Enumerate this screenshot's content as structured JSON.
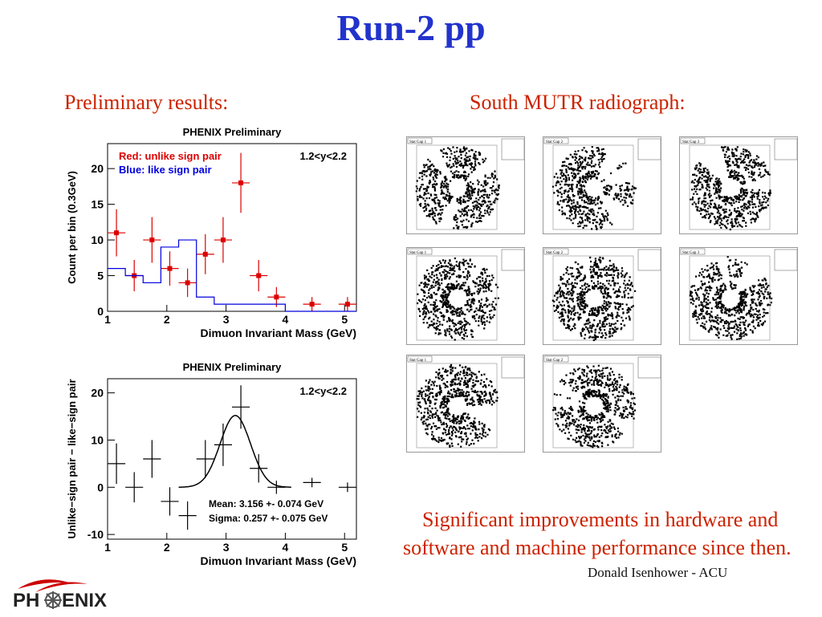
{
  "slide": {
    "title": "Run-2 pp",
    "left_heading": "Preliminary results:",
    "right_heading": "South MUTR radiograph:",
    "summary": "Significant improvements in hardware and software  and machine performance since then.",
    "author": "Donald Isenhower - ACU"
  },
  "logo": {
    "text_left": "PH",
    "text_right": "ENIX",
    "accent": "#cc0000",
    "icon": "phoenix-logo"
  },
  "colors": {
    "title": "#2233cc",
    "heading": "#cc2200",
    "red_series": "#dd0000",
    "blue_series": "#0000dd"
  },
  "chart_data": [
    {
      "type": "line",
      "title": "PHENIX Preliminary",
      "xlabel": "Dimuon Invariant Mass (GeV)",
      "ylabel": "Count per bin (0.3GeV)",
      "xlim": [
        1,
        5.2
      ],
      "ylim": [
        0,
        23.5
      ],
      "xticks": [
        1,
        2,
        3,
        4,
        5
      ],
      "yticks": [
        0,
        5,
        10,
        15,
        20
      ],
      "legend": [
        "Red: unlike sign pair",
        "Blue: like sign pair"
      ],
      "annotation": "1.2<y<2.2",
      "series": [
        {
          "name": "Red: unlike sign pair",
          "style": "points-with-errors",
          "color": "#dd0000",
          "x": [
            1.15,
            1.45,
            1.75,
            2.05,
            2.35,
            2.65,
            2.95,
            3.25,
            3.55,
            3.85,
            4.45,
            5.05
          ],
          "y": [
            11,
            5,
            10,
            6,
            4,
            8,
            10,
            18,
            5,
            2,
            1,
            1
          ],
          "yerr": [
            3.3,
            2.2,
            3.2,
            2.4,
            2.0,
            2.8,
            3.2,
            4.2,
            2.2,
            1.4,
            1.0,
            1.0
          ]
        },
        {
          "name": "Blue: like sign pair",
          "style": "histogram",
          "color": "#0000dd",
          "bin_edges": [
            1.0,
            1.3,
            1.6,
            1.9,
            2.2,
            2.5,
            2.8,
            3.1,
            3.4,
            3.7,
            4.0,
            4.3,
            4.6,
            4.9,
            5.2
          ],
          "values": [
            6,
            5,
            4,
            9,
            10,
            2,
            1,
            1,
            1,
            1,
            0,
            0,
            0,
            0
          ]
        }
      ]
    },
    {
      "type": "line",
      "title": "PHENIX Preliminary",
      "xlabel": "Dimuon Invariant Mass (GeV)",
      "ylabel": "Unlike−sign pair − like−sign pair",
      "xlim": [
        1,
        5.2
      ],
      "ylim": [
        -11,
        23
      ],
      "xticks": [
        1,
        2,
        3,
        4,
        5
      ],
      "yticks": [
        -10,
        0,
        10,
        20
      ],
      "annotation": "1.2<y<2.2",
      "fit_text": [
        "Mean: 3.156 +- 0.074 GeV",
        "Sigma: 0.257 +- 0.075 GeV"
      ],
      "series": [
        {
          "style": "points-with-errors",
          "color": "#000000",
          "x": [
            1.15,
            1.45,
            1.75,
            2.05,
            2.35,
            2.65,
            2.95,
            3.25,
            3.55,
            3.85,
            4.45,
            5.05
          ],
          "y": [
            5,
            0,
            6,
            -3,
            -6,
            6,
            9,
            17,
            4,
            0,
            1,
            0
          ],
          "yerr": [
            4.3,
            3.2,
            4.0,
            3.0,
            3.0,
            4.0,
            4.5,
            4.6,
            3.0,
            1.4,
            1.0,
            1.0
          ]
        },
        {
          "style": "gaussian-fit",
          "color": "#000000",
          "mean": 3.156,
          "sigma": 0.257,
          "amplitude": 15.2
        }
      ]
    }
  ],
  "radiographs": [
    {
      "id": "Stat Gap 1",
      "seed": 11,
      "cut": 0.35
    },
    {
      "id": "Stat Gap 2",
      "seed": 23,
      "cut": 0.5
    },
    {
      "id": "Stat Gap 3",
      "seed": 37,
      "cut": 0.35
    },
    {
      "id": "Stat Gap 1",
      "seed": 41,
      "cut": 0.2
    },
    {
      "id": "Stat Gap 2",
      "seed": 53,
      "cut": 0.2
    },
    {
      "id": "Stat Gap 3",
      "seed": 67,
      "cut": 0.3
    },
    {
      "id": "Stat Gap 1",
      "seed": 71,
      "cut": 0.45
    },
    {
      "id": "Stat Gap 2",
      "seed": 83,
      "cut": 0.3
    }
  ]
}
